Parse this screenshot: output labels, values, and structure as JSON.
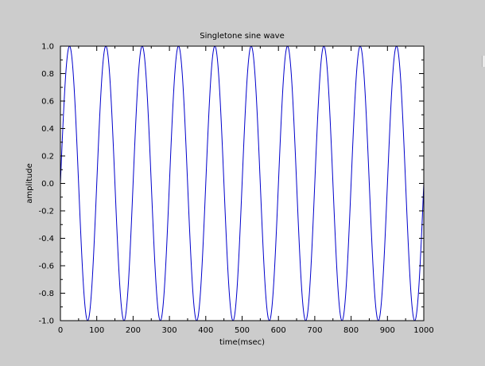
{
  "chart_data": {
    "type": "line",
    "title": "Singletone sine wave",
    "xlabel": "time(msec)",
    "ylabel": "amplitude",
    "xlim": [
      0,
      1000
    ],
    "ylim": [
      -1.0,
      1.0
    ],
    "x_ticks": [
      0,
      100,
      200,
      300,
      400,
      500,
      600,
      700,
      800,
      900,
      1000
    ],
    "x_tick_labels": [
      "0",
      "100",
      "200",
      "300",
      "400",
      "500",
      "600",
      "700",
      "800",
      "900",
      "1000"
    ],
    "y_ticks": [
      -1.0,
      -0.8,
      -0.6,
      -0.4,
      -0.2,
      0.0,
      0.2,
      0.4,
      0.6,
      0.8,
      1.0
    ],
    "y_tick_labels": [
      "-1.0",
      "-0.8",
      "-0.6",
      "-0.4",
      "-0.2",
      "0.0",
      "0.2",
      "0.4",
      "0.6",
      "0.8",
      "1.0"
    ],
    "grid": false,
    "legend": "none",
    "series": [
      {
        "function": "sin",
        "amplitude": 1.0,
        "period": 100,
        "x_start": 0,
        "x_end": 1000,
        "color": "#0000cc"
      }
    ]
  },
  "colors": {
    "background": "#cccccc",
    "plot_area": "#ffffff",
    "axis": "#000000",
    "line": "#0000cc"
  }
}
